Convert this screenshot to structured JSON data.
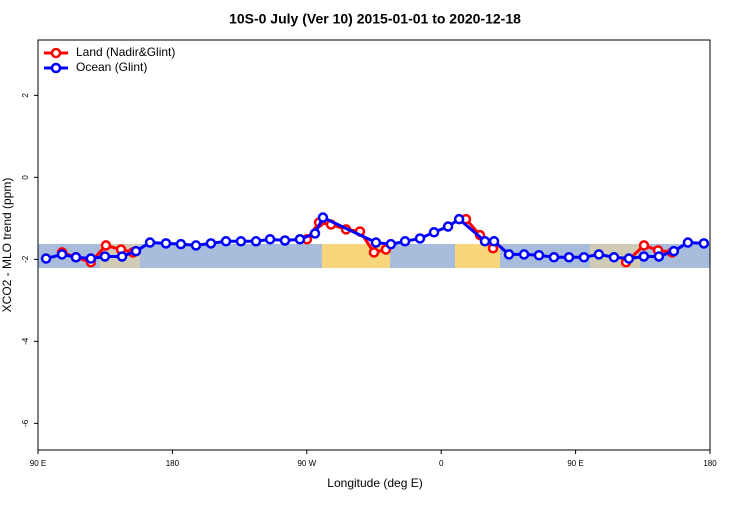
{
  "chart_data": {
    "type": "line",
    "title": "10S-0 July (Ver 10)   2015-01-01 to 2020-12-18",
    "xlabel": "Longitude (deg E)",
    "ylabel": "XCO2 - MLO trend (ppm)",
    "xlim": [
      90,
      540
    ],
    "ylim": [
      -6.65,
      3.35
    ],
    "xticks": [
      {
        "value": 90,
        "label": "90 E"
      },
      {
        "value": 180,
        "label": "180"
      },
      {
        "value": 270,
        "label": "90 W"
      },
      {
        "value": 360,
        "label": "0"
      },
      {
        "value": 450,
        "label": "90 E"
      },
      {
        "value": 540,
        "label": "180"
      }
    ],
    "yticks": [
      -6,
      -4,
      -2,
      0,
      2
    ],
    "legend": "top-left",
    "series": [
      {
        "name": "Land (Nadir&Glint)",
        "color": "#ff0000",
        "x": [
          106.1,
          115.4,
          125.4,
          135.5,
          145.6,
          153.6,
          200,
          270.1,
          278.2,
          286.2,
          296.3,
          305.6,
          315,
          323,
          340,
          376.6,
          386,
          394.7,
          450,
          483.8,
          495.8,
          505.2,
          514.6
        ],
        "values": [
          -1.83,
          -1.95,
          -2.07,
          -1.66,
          -1.76,
          -1.83,
          null,
          -1.51,
          -1.1,
          -1.15,
          -1.27,
          -1.32,
          -1.83,
          -1.76,
          null,
          -1.02,
          -1.41,
          -1.73,
          null,
          -2.07,
          -1.66,
          -1.78,
          -1.83
        ]
      },
      {
        "name": "Ocean (Glint)",
        "color": "#0000ff",
        "x": [
          95.4,
          106.1,
          115.4,
          125.4,
          134.8,
          146.3,
          155.6,
          165,
          175.7,
          185.7,
          195.8,
          205.8,
          215.9,
          225.9,
          236,
          245.4,
          255.4,
          265.4,
          275.5,
          280.8,
          316.3,
          326.3,
          335.8,
          345.8,
          355.2,
          364.6,
          372,
          389.3,
          395.4,
          405.4,
          415.5,
          425.5,
          435.5,
          445.6,
          455.6,
          465.6,
          475.7,
          485.7,
          495.7,
          505.8,
          515.8,
          525.2,
          535.9
        ],
        "values": [
          -1.98,
          -1.88,
          -1.95,
          -1.98,
          -1.93,
          -1.93,
          -1.8,
          -1.59,
          -1.61,
          -1.63,
          -1.66,
          -1.61,
          -1.56,
          -1.56,
          -1.56,
          -1.51,
          -1.54,
          -1.51,
          -1.37,
          -0.98,
          -1.59,
          -1.63,
          -1.56,
          -1.49,
          -1.34,
          -1.2,
          -1.02,
          -1.56,
          -1.56,
          -1.88,
          -1.88,
          -1.9,
          -1.95,
          -1.95,
          -1.95,
          -1.88,
          -1.95,
          -1.98,
          -1.93,
          -1.93,
          -1.8,
          -1.59,
          -1.61
        ]
      }
    ]
  }
}
